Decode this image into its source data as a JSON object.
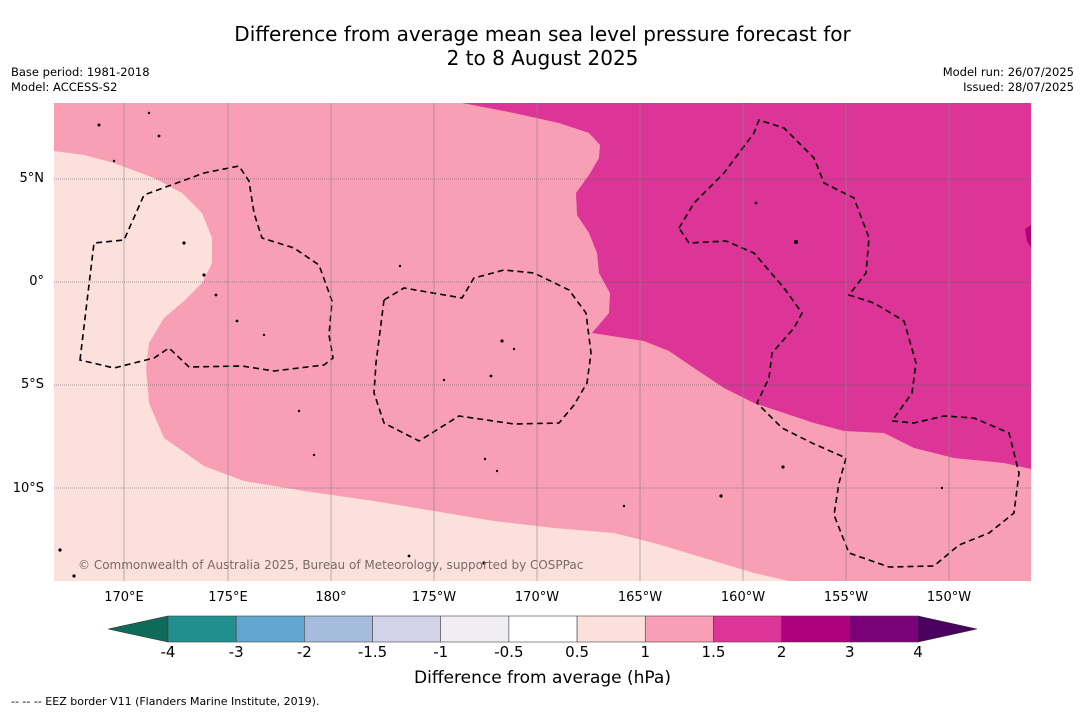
{
  "title": {
    "line1": "Difference from average mean sea level pressure forecast for",
    "line2": "2 to 8 August 2025"
  },
  "meta": {
    "base_period": "Base period: 1981-2018",
    "model": "Model: ACCESS-S2",
    "model_run": "Model run: 26/07/2025",
    "issued": "Issued: 28/07/2025"
  },
  "map": {
    "lat_labels": [
      "5°N",
      "0°",
      "5°S",
      "10°S"
    ],
    "lon_labels": [
      "170°E",
      "175°E",
      "180°",
      "175°W",
      "170°W",
      "165°W",
      "160°W",
      "155°W",
      "150°W"
    ],
    "copyright": "© Commonwealth of Australia 2025, Bureau of Meteorology, supported by COSPPac",
    "colors": {
      "band_0_5_1": "#fbe0dc",
      "band_1_1_5": "#f89fb5",
      "band_1_5_2": "#dc3597",
      "band_2_3": "#ae017e",
      "eez_line": "#000000"
    },
    "fields": [
      {
        "name": "0.5 to 1 hPa",
        "color": "#fbe0dc"
      },
      {
        "name": "1 to 1.5 hPa",
        "color": "#f89fb5"
      },
      {
        "name": "1.5 to 2 hPa",
        "color": "#dc3597"
      },
      {
        "name": "2 to 3 hPa",
        "color": "#ae017e"
      }
    ]
  },
  "colorbar": {
    "title": "Difference from average (hPa)",
    "ticks": [
      "-4",
      "-3",
      "-2",
      "-1.5",
      "-1",
      "-0.5",
      "0.5",
      "1",
      "1.5",
      "2",
      "3",
      "4"
    ],
    "colors": [
      "#20908f",
      "#62a6d0",
      "#a6bcdd",
      "#d2d3e9",
      "#f0eef2",
      "#ffffff",
      "#fbe0dc",
      "#f89fb5",
      "#dc3597",
      "#ae017e",
      "#7a0177"
    ],
    "under_color": "#0e6b5a",
    "over_color": "#4a0060"
  },
  "footnote": "--  --  -- EEZ border V11 (Flanders Marine Institute, 2019)."
}
